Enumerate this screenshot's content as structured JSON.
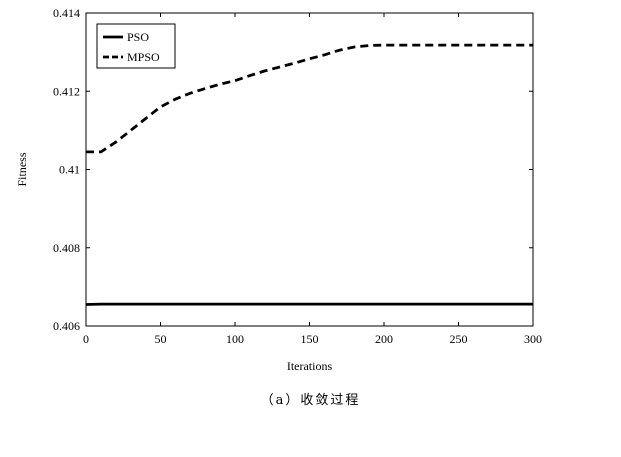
{
  "chart_data": {
    "type": "line",
    "title": "",
    "xlabel": "Iterations",
    "ylabel": "Fitness",
    "xlim": [
      0,
      300
    ],
    "ylim": [
      0.406,
      0.414
    ],
    "xticks": [
      0,
      50,
      100,
      150,
      200,
      250,
      300
    ],
    "yticks": [
      0.406,
      0.408,
      0.41,
      0.412,
      0.414
    ],
    "xtick_labels": [
      "0",
      "50",
      "100",
      "150",
      "200",
      "250",
      "300"
    ],
    "ytick_labels": [
      "0.406",
      "0.408",
      "0.41",
      "0.412",
      "0.414"
    ],
    "grid": false,
    "legend_position": "top-left",
    "series": [
      {
        "name": "PSO",
        "style": "solid",
        "color": "#000000",
        "x": [
          0,
          10,
          50,
          100,
          150,
          200,
          250,
          300
        ],
        "y": [
          0.40655,
          0.40656,
          0.40656,
          0.40656,
          0.40656,
          0.40656,
          0.40656,
          0.40656
        ]
      },
      {
        "name": "MPSO",
        "style": "dashed",
        "color": "#000000",
        "x": [
          0,
          10,
          20,
          30,
          40,
          50,
          60,
          70,
          80,
          90,
          100,
          110,
          120,
          130,
          140,
          150,
          160,
          170,
          180,
          190,
          200,
          210,
          220,
          230,
          240,
          250,
          260,
          270,
          280,
          290,
          300
        ],
        "y": [
          0.41045,
          0.41045,
          0.4107,
          0.411,
          0.4113,
          0.4116,
          0.4118,
          0.41195,
          0.41207,
          0.41218,
          0.41227,
          0.4124,
          0.41252,
          0.41262,
          0.41272,
          0.41283,
          0.41293,
          0.41305,
          0.41313,
          0.41317,
          0.41318,
          0.41318,
          0.41318,
          0.41318,
          0.41318,
          0.41318,
          0.41318,
          0.41318,
          0.41318,
          0.41318,
          0.41318
        ]
      }
    ]
  },
  "caption": "（a）收敛过程"
}
